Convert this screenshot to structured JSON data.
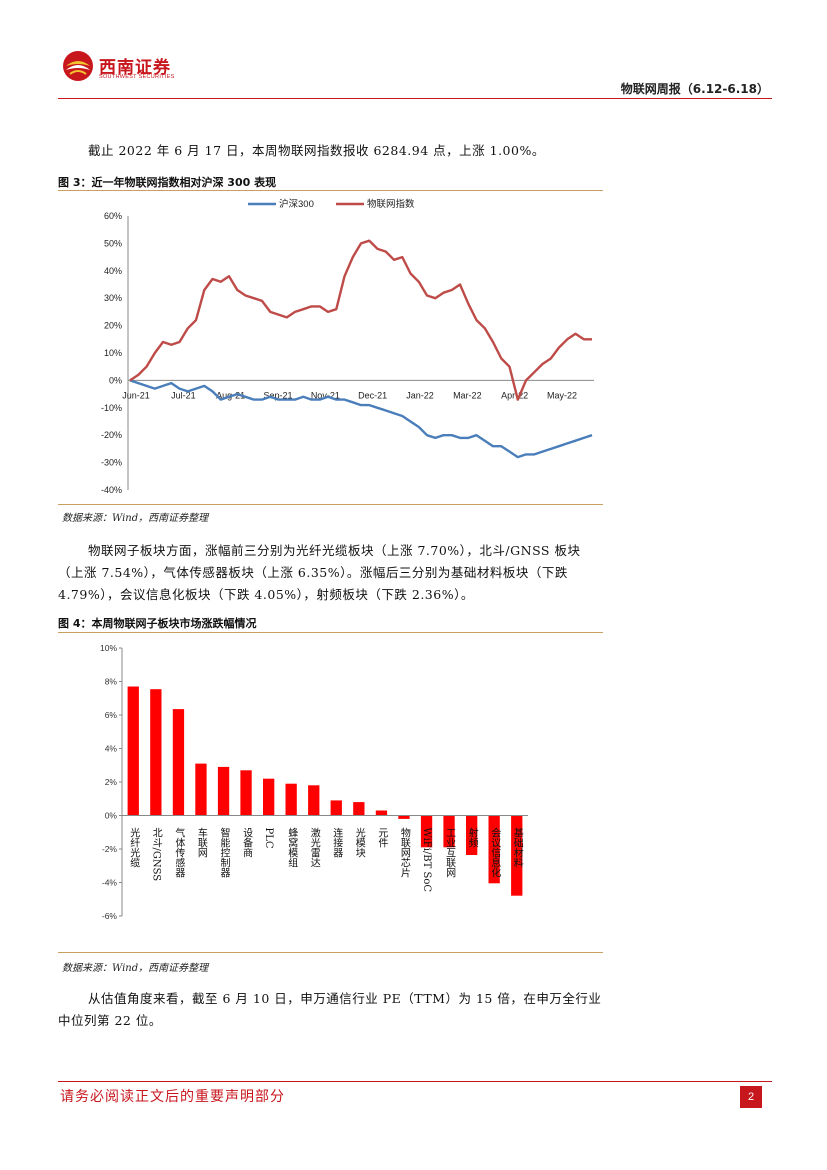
{
  "header": {
    "company_cn": "西南证券",
    "company_en": "SOUTHWEST SECURITIES",
    "report_title": "物联网周报（6.12-6.18）"
  },
  "paragraphs": {
    "p1": "截止 2022 年 6 月 17 日，本周物联网指数报收 6284.94 点，上涨 1.00%。",
    "p2": "物联网子板块方面，涨幅前三分别为光纤光缆板块（上涨 7.70%），北斗/GNSS 板块（上涨 7.54%），气体传感器板块（上涨 6.35%）。涨幅后三分别为基础材料板块（下跌 4.79%），会议信息化板块（下跌 4.05%），射频板块（下跌 2.36%）。",
    "p3": "从估值角度来看，截至 6 月 10 日，申万通信行业 PE（TTM）为 15 倍，在申万全行业中位列第 22 位。"
  },
  "figures": {
    "fig3_title": "图 3：近一年物联网指数相对沪深 300 表现",
    "fig4_title": "图 4：本周物联网子板块市场涨跌幅情况",
    "source": "数据来源：Wind，西南证券整理"
  },
  "footer": {
    "disclaimer": "请务必阅读正文后的重要声明部分",
    "page": "2"
  },
  "colors": {
    "brand_red": "#c8161d",
    "hs300_blue": "#4a7ebb",
    "iot_red": "#be4b48",
    "bar_red": "#ff0000"
  },
  "chart_data": [
    {
      "type": "line",
      "ylim": [
        -40,
        60
      ],
      "yticks": [
        "60%",
        "50%",
        "40%",
        "30%",
        "20%",
        "10%",
        "0%",
        "-10%",
        "-20%",
        "-30%",
        "-40%"
      ],
      "xticks": [
        "Jun-21",
        "Jul-21",
        "Aug-21",
        "Sep-21",
        "Nov-21",
        "Dec-21",
        "Jan-22",
        "Mar-22",
        "Apr-22",
        "May-22"
      ],
      "series": [
        {
          "name": "沪深300",
          "color": "#4a7ebb",
          "values": [
            0,
            -1,
            -2,
            -3,
            -2,
            -1,
            -3,
            -4,
            -3,
            -2,
            -4,
            -7,
            -6,
            -5,
            -6,
            -7,
            -7,
            -6,
            -7,
            -7,
            -7,
            -6,
            -7,
            -7,
            -6,
            -7,
            -7,
            -8,
            -9,
            -9,
            -10,
            -11,
            -12,
            -13,
            -15,
            -17,
            -20,
            -21,
            -20,
            -20,
            -21,
            -21,
            -20,
            -22,
            -24,
            -24,
            -26,
            -28,
            -27,
            -27,
            -26,
            -25,
            -24,
            -23,
            -22,
            -21,
            -20
          ]
        },
        {
          "name": "物联网指数",
          "color": "#be4b48",
          "values": [
            0,
            2,
            5,
            10,
            14,
            13,
            14,
            19,
            22,
            33,
            37,
            36,
            38,
            33,
            31,
            30,
            29,
            25,
            24,
            23,
            25,
            26,
            27,
            27,
            25,
            26,
            38,
            45,
            50,
            51,
            48,
            47,
            44,
            45,
            39,
            36,
            31,
            30,
            32,
            33,
            35,
            28,
            22,
            19,
            14,
            8,
            5,
            -7,
            0,
            3,
            6,
            8,
            12,
            15,
            17,
            15,
            15
          ]
        }
      ]
    },
    {
      "type": "bar",
      "ylim": [
        -6,
        10
      ],
      "yticks": [
        "10%",
        "8%",
        "6%",
        "4%",
        "2%",
        "0%",
        "-2%",
        "-4%",
        "-6%"
      ],
      "categories": [
        "光纤光缆",
        "北斗/GNSS",
        "气体传感器",
        "车联网",
        "智能控制器",
        "设备商",
        "PLC",
        "蜂窝模组",
        "激光雷达",
        "连接器",
        "光模块",
        "元件",
        "物联网芯片",
        "WiFi/BT SoC",
        "工业互联网",
        "射频",
        "会议信息化",
        "基础材料"
      ],
      "values": [
        7.7,
        7.54,
        6.35,
        3.1,
        2.9,
        2.7,
        2.2,
        1.9,
        1.8,
        0.9,
        0.8,
        0.3,
        -0.2,
        -1.9,
        -1.9,
        -2.36,
        -4.05,
        -4.79
      ],
      "color": "#ff0000"
    }
  ]
}
